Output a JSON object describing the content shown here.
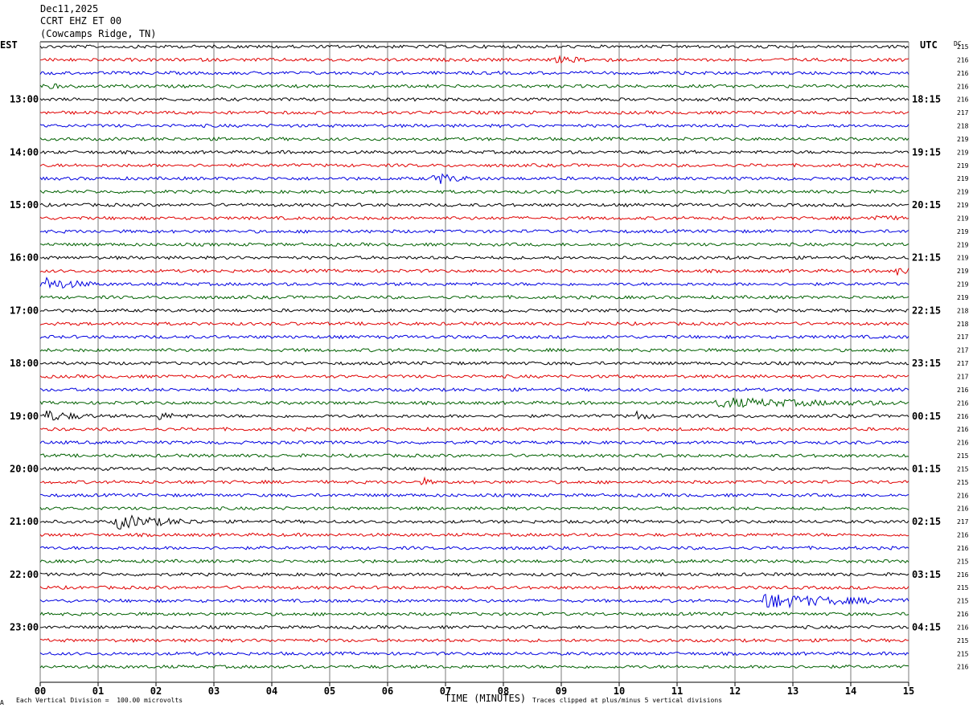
{
  "header": {
    "date": "Dec11,2025",
    "channel": "CCRT EHZ ET 00",
    "station": "(Cowcamps Ridge, TN)"
  },
  "left_tz": "EST",
  "right_tz": "UTC",
  "dc_label": "DC",
  "footer": {
    "mark": "A",
    "scale_note": "Each Vertical Division =  100.00 microvolts",
    "xlabel": "TIME (MINUTES)",
    "clip_note": "Traces clipped at plus/minus 5 vertical divisions"
  },
  "colors": {
    "cycle": [
      "#000000",
      "#e00000",
      "#0000e0",
      "#006000"
    ],
    "grid": "#7a7a7a"
  },
  "chart_data": {
    "type": "line",
    "title": "",
    "xlabel": "TIME (MINUTES)",
    "x_ticks": [
      "00",
      "01",
      "02",
      "03",
      "04",
      "05",
      "06",
      "07",
      "08",
      "09",
      "10",
      "11",
      "12",
      "13",
      "14",
      "15"
    ],
    "xlim": [
      0,
      15
    ],
    "rows": 48,
    "rows_per_hour": 4,
    "left_hour_labels": [
      "13:00",
      "14:00",
      "15:00",
      "16:00",
      "17:00",
      "18:00",
      "19:00",
      "20:00",
      "21:00",
      "22:00",
      "23:00"
    ],
    "right_hour_labels": [
      "18:15",
      "19:15",
      "20:15",
      "21:15",
      "22:15",
      "23:15",
      "00:15",
      "01:15",
      "02:15",
      "03:15",
      "04:15"
    ],
    "dc_offsets": [
      215,
      216,
      216,
      216,
      216,
      217,
      218,
      219,
      219,
      219,
      219,
      219,
      219,
      219,
      219,
      219,
      219,
      219,
      219,
      219,
      218,
      218,
      217,
      217,
      217,
      217,
      216,
      216,
      216,
      216,
      216,
      215,
      215,
      215,
      216,
      216,
      217,
      216,
      216,
      215,
      216,
      215,
      215,
      216,
      216,
      215,
      215,
      216
    ],
    "events": [
      {
        "row": 3,
        "minute": 0.1,
        "amp": 2.2,
        "dur": 0.3
      },
      {
        "row": 1,
        "minute": 8.9,
        "amp": 1.6,
        "dur": 1.0
      },
      {
        "row": 13,
        "minute": 14.3,
        "amp": 2.0,
        "dur": 0.6
      },
      {
        "row": 10,
        "minute": 6.8,
        "amp": 4.5,
        "dur": 0.6
      },
      {
        "row": 18,
        "minute": 0.0,
        "amp": 5,
        "dur": 1.0
      },
      {
        "row": 17,
        "minute": 14.8,
        "amp": 3.5,
        "dur": 0.4
      },
      {
        "row": 27,
        "minute": 11.7,
        "amp": 3.0,
        "dur": 3.4
      },
      {
        "row": 28,
        "minute": 0.1,
        "amp": 3.5,
        "dur": 0.9
      },
      {
        "row": 28,
        "minute": 2.0,
        "amp": 2.5,
        "dur": 0.6
      },
      {
        "row": 28,
        "minute": 10.3,
        "amp": 3.0,
        "dur": 0.3
      },
      {
        "row": 36,
        "minute": 1.3,
        "amp": 5,
        "dur": 1.5
      },
      {
        "row": 42,
        "minute": 12.5,
        "amp": 5,
        "dur": 2.5
      },
      {
        "row": 33,
        "minute": 6.6,
        "amp": 3.0,
        "dur": 0.2
      }
    ]
  }
}
